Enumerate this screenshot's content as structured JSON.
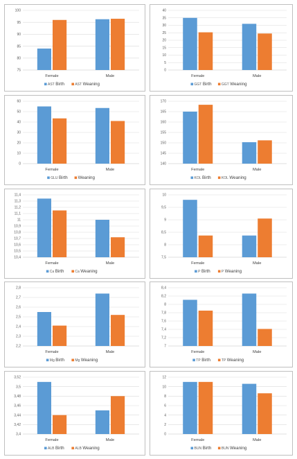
{
  "colors": {
    "birth": "#5b9bd5",
    "weaning": "#ed7d31",
    "grid": "#d9d9d9",
    "axis": "#bfbfbf"
  },
  "chart_data": [
    {
      "type": "bar",
      "categories": [
        "Female",
        "Male"
      ],
      "yticks": [
        "75",
        "80",
        "85",
        "90",
        "95",
        "100"
      ],
      "ylim": [
        75,
        100
      ],
      "series": [
        {
          "name": "AST",
          "values": [
            84,
            96.3
          ]
        },
        {
          "name": "AST",
          "values": [
            96,
            96.5
          ]
        }
      ],
      "legend": {
        "birth_prefix": "AST",
        "birth_word": "Birth",
        "weaning_prefix": "AST",
        "weaning_word": "Weaning"
      }
    },
    {
      "type": "bar",
      "categories": [
        "Female",
        "Male"
      ],
      "yticks": [
        "0",
        "5",
        "10",
        "15",
        "20",
        "25",
        "30",
        "35",
        "40"
      ],
      "ylim": [
        0,
        40
      ],
      "series": [
        {
          "name": "GGT",
          "values": [
            35,
            31
          ]
        },
        {
          "name": "GGT",
          "values": [
            25.3,
            24.5
          ]
        }
      ],
      "legend": {
        "birth_prefix": "GGT",
        "birth_word": "Birth",
        "weaning_prefix": "GGT",
        "weaning_word": "Weaning"
      }
    },
    {
      "type": "bar",
      "categories": [
        "Female",
        "Male"
      ],
      "yticks": [
        "0",
        "10",
        "20",
        "30",
        "40",
        "50",
        "60"
      ],
      "ylim": [
        0,
        60
      ],
      "series": [
        {
          "name": "GLU",
          "values": [
            55,
            53.5
          ]
        },
        {
          "name": "",
          "values": [
            43.5,
            41
          ]
        }
      ],
      "legend": {
        "birth_prefix": "GLU",
        "birth_word": "Birth",
        "weaning_prefix": "",
        "weaning_word": "Weaning"
      }
    },
    {
      "type": "bar",
      "categories": [
        "Female",
        "Male"
      ],
      "yticks": [
        "140",
        "145",
        "150",
        "155",
        "160",
        "165",
        "170"
      ],
      "ylim": [
        140,
        170
      ],
      "series": [
        {
          "name": "KOL",
          "values": [
            165,
            150.3
          ]
        },
        {
          "name": "KOL",
          "values": [
            168.3,
            151.2
          ]
        }
      ],
      "legend": {
        "birth_prefix": "KOL",
        "birth_word": "Birth",
        "weaning_prefix": "KOL",
        "weaning_word": "Weaning"
      }
    },
    {
      "type": "bar",
      "categories": [
        "Female",
        "Male"
      ],
      "yticks": [
        "10,4",
        "10,5",
        "10,6",
        "10,7",
        "10,8",
        "10,9",
        "11",
        "11,1",
        "11,2",
        "11,3",
        "11,4"
      ],
      "ylim": [
        10.4,
        11.4
      ],
      "series": [
        {
          "name": "Ca",
          "values": [
            11.34,
            11.0
          ]
        },
        {
          "name": "Ca",
          "values": [
            11.15,
            10.72
          ]
        }
      ],
      "legend": {
        "birth_prefix": "Ca",
        "birth_word": "Birth",
        "weaning_prefix": "Ca",
        "weaning_word": "Weaning"
      }
    },
    {
      "type": "bar",
      "categories": [
        "Female",
        "Male"
      ],
      "yticks": [
        "7,5",
        "8",
        "8,5",
        "9",
        "9,5",
        "10"
      ],
      "ylim": [
        7.5,
        10
      ],
      "series": [
        {
          "name": "P",
          "values": [
            9.8,
            8.37
          ]
        },
        {
          "name": "P",
          "values": [
            8.37,
            9.05
          ]
        }
      ],
      "legend": {
        "birth_prefix": "P",
        "birth_word": "Birth",
        "weaning_prefix": "P",
        "weaning_word": "Weaning"
      }
    },
    {
      "type": "bar",
      "categories": [
        "Female",
        "Male"
      ],
      "yticks": [
        "2,2",
        "2,3",
        "2,4",
        "2,5",
        "2,6",
        "2,7",
        "2,8"
      ],
      "ylim": [
        2.2,
        2.8
      ],
      "series": [
        {
          "name": "Mg",
          "values": [
            2.55,
            2.74
          ]
        },
        {
          "name": "Mg",
          "values": [
            2.41,
            2.52
          ]
        }
      ],
      "legend": {
        "birth_prefix": "Mg",
        "birth_word": "Birth",
        "weaning_prefix": "Mg",
        "weaning_word": "Weaning"
      }
    },
    {
      "type": "bar",
      "categories": [
        "Female",
        "Male"
      ],
      "yticks": [
        "7",
        "7,2",
        "7,4",
        "7,6",
        "7,8",
        "8",
        "8,2",
        "8,4"
      ],
      "ylim": [
        7,
        8.4
      ],
      "series": [
        {
          "name": "TP",
          "values": [
            8.11,
            8.26
          ]
        },
        {
          "name": "TP",
          "values": [
            7.85,
            7.41
          ]
        }
      ],
      "legend": {
        "birth_prefix": "TP",
        "birth_word": "Birth",
        "weaning_prefix": "TP",
        "weaning_word": "Weaning"
      }
    },
    {
      "type": "bar",
      "categories": [
        "Female",
        "Male"
      ],
      "yticks": [
        "3,4",
        "3,42",
        "3,44",
        "3,46",
        "3,48",
        "3,5",
        "3,52"
      ],
      "ylim": [
        3.4,
        3.52
      ],
      "series": [
        {
          "name": "ALB",
          "values": [
            3.51,
            3.45
          ]
        },
        {
          "name": "ALB",
          "values": [
            3.44,
            3.48
          ]
        }
      ],
      "legend": {
        "birth_prefix": "ALB",
        "birth_word": "Birth",
        "weaning_prefix": "ALB",
        "weaning_word": "Weaning"
      }
    },
    {
      "type": "bar",
      "categories": [
        "Female",
        "Male"
      ],
      "yticks": [
        "0",
        "2",
        "4",
        "6",
        "8",
        "10",
        "12"
      ],
      "ylim": [
        0,
        12
      ],
      "series": [
        {
          "name": "BUN",
          "values": [
            11,
            10.6
          ]
        },
        {
          "name": "BUN",
          "values": [
            11,
            8.6
          ]
        }
      ],
      "legend": {
        "birth_prefix": "BUN",
        "birth_word": "Birth",
        "weaning_prefix": "BUN",
        "weaning_word": "Weaning"
      }
    }
  ]
}
